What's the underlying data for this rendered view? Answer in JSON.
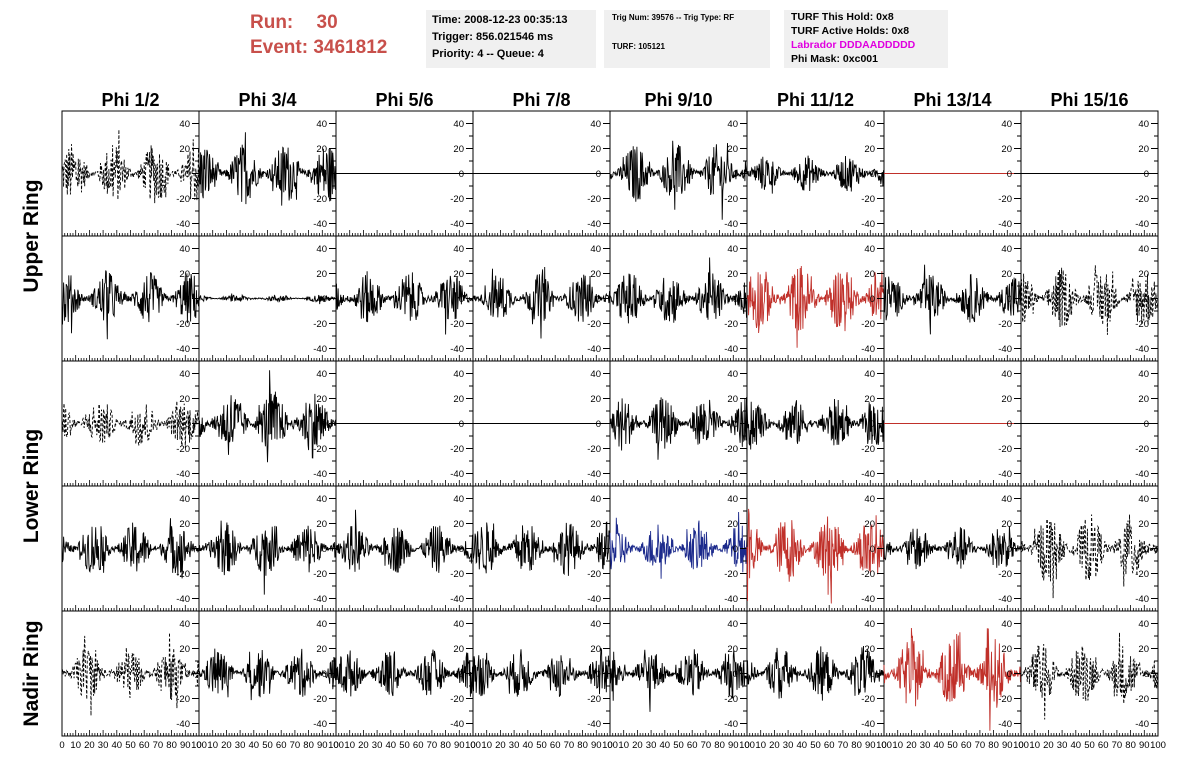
{
  "header": {
    "run_label": "Run:",
    "run_value": "30",
    "event_label": "Event:",
    "event_value": "3461812"
  },
  "time_box": {
    "time": "Time: 2008-12-23 00:35:13",
    "trigger": "Trigger: 856.021546 ms",
    "priority": "Priority: 4 -- Queue: 4"
  },
  "trig_box": {
    "trig": "Trig Num: 39576 -- Trig Type: RF",
    "turf": "TURF: 105121"
  },
  "turf_box": {
    "this_hold": "TURF This Hold: 0x8",
    "active_holds": "TURF Active Holds: 0x8",
    "labrador": "Labrador DDDAADDDDD",
    "phi_mask": "Phi Mask: 0xc001"
  },
  "colors": {
    "black": "#000000",
    "red": "#c0302a",
    "blue": "#1c2a8c",
    "header_red": "#c8504b",
    "labrador_magenta": "#e000e0"
  },
  "chart_data": {
    "type": "line",
    "column_titles": [
      "Phi 1/2",
      "Phi 3/4",
      "Phi 5/6",
      "Phi 7/8",
      "Phi 9/10",
      "Phi 11/12",
      "Phi 13/14",
      "Phi 15/16"
    ],
    "row_titles": [
      "Upper Ring",
      "Lower Ring",
      "Nadir Ring"
    ],
    "xlim": [
      0,
      100
    ],
    "ylim": [
      -50,
      50
    ],
    "x_ticks": [
      "0",
      "10",
      "20",
      "30",
      "40",
      "50",
      "60",
      "70",
      "80",
      "90",
      "100"
    ],
    "y_ticks": [
      "40",
      "20",
      "0",
      "-20",
      "-40"
    ],
    "panels": [
      [
        {
          "style": "dashed",
          "color": "black",
          "amplitude": 25
        },
        {
          "style": "solid",
          "color": "black",
          "amplitude": 25
        },
        {
          "style": "flat",
          "color": "black",
          "amplitude": 0
        },
        {
          "style": "flat",
          "color": "black",
          "amplitude": 0
        },
        {
          "style": "solid",
          "color": "black",
          "amplitude": 24
        },
        {
          "style": "solid",
          "color": "black",
          "amplitude": 15
        },
        {
          "style": "flat",
          "color": "red",
          "amplitude": 0
        },
        {
          "style": "flat",
          "color": "black",
          "amplitude": 0
        }
      ],
      [
        {
          "style": "solid",
          "color": "black",
          "amplitude": 22
        },
        {
          "style": "solid",
          "color": "black",
          "amplitude": 3
        },
        {
          "style": "solid",
          "color": "black",
          "amplitude": 22
        },
        {
          "style": "solid",
          "color": "black",
          "amplitude": 20
        },
        {
          "style": "solid",
          "color": "black",
          "amplitude": 22
        },
        {
          "style": "solid",
          "color": "red",
          "amplitude": 28
        },
        {
          "style": "solid",
          "color": "black",
          "amplitude": 20
        },
        {
          "style": "dashed",
          "color": "black",
          "amplitude": 25
        }
      ],
      [
        {
          "style": "dashed",
          "color": "black",
          "amplitude": 20
        },
        {
          "style": "solid",
          "color": "black",
          "amplitude": 28
        },
        {
          "style": "flat",
          "color": "black",
          "amplitude": 0
        },
        {
          "style": "flat",
          "color": "black",
          "amplitude": 0
        },
        {
          "style": "solid",
          "color": "black",
          "amplitude": 22
        },
        {
          "style": "solid",
          "color": "black",
          "amplitude": 20
        },
        {
          "style": "flat",
          "color": "red",
          "amplitude": 0
        },
        {
          "style": "flat",
          "color": "black",
          "amplitude": 0
        }
      ],
      [
        {
          "style": "solid",
          "color": "black",
          "amplitude": 22
        },
        {
          "style": "solid",
          "color": "black",
          "amplitude": 22
        },
        {
          "style": "solid",
          "color": "black",
          "amplitude": 20
        },
        {
          "style": "solid",
          "color": "black",
          "amplitude": 22
        },
        {
          "style": "solid",
          "color": "blue",
          "amplitude": 20
        },
        {
          "style": "solid",
          "color": "red",
          "amplitude": 28
        },
        {
          "style": "solid",
          "color": "black",
          "amplitude": 18
        },
        {
          "style": "dashed",
          "color": "black",
          "amplitude": 28
        }
      ],
      [
        {
          "style": "dashed",
          "color": "black",
          "amplitude": 22
        },
        {
          "style": "solid",
          "color": "black",
          "amplitude": 20
        },
        {
          "style": "solid",
          "color": "black",
          "amplitude": 20
        },
        {
          "style": "solid",
          "color": "black",
          "amplitude": 20
        },
        {
          "style": "solid",
          "color": "black",
          "amplitude": 20
        },
        {
          "style": "solid",
          "color": "black",
          "amplitude": 22
        },
        {
          "style": "solid",
          "color": "red",
          "amplitude": 30
        },
        {
          "style": "dashed",
          "color": "black",
          "amplitude": 25
        }
      ]
    ]
  }
}
